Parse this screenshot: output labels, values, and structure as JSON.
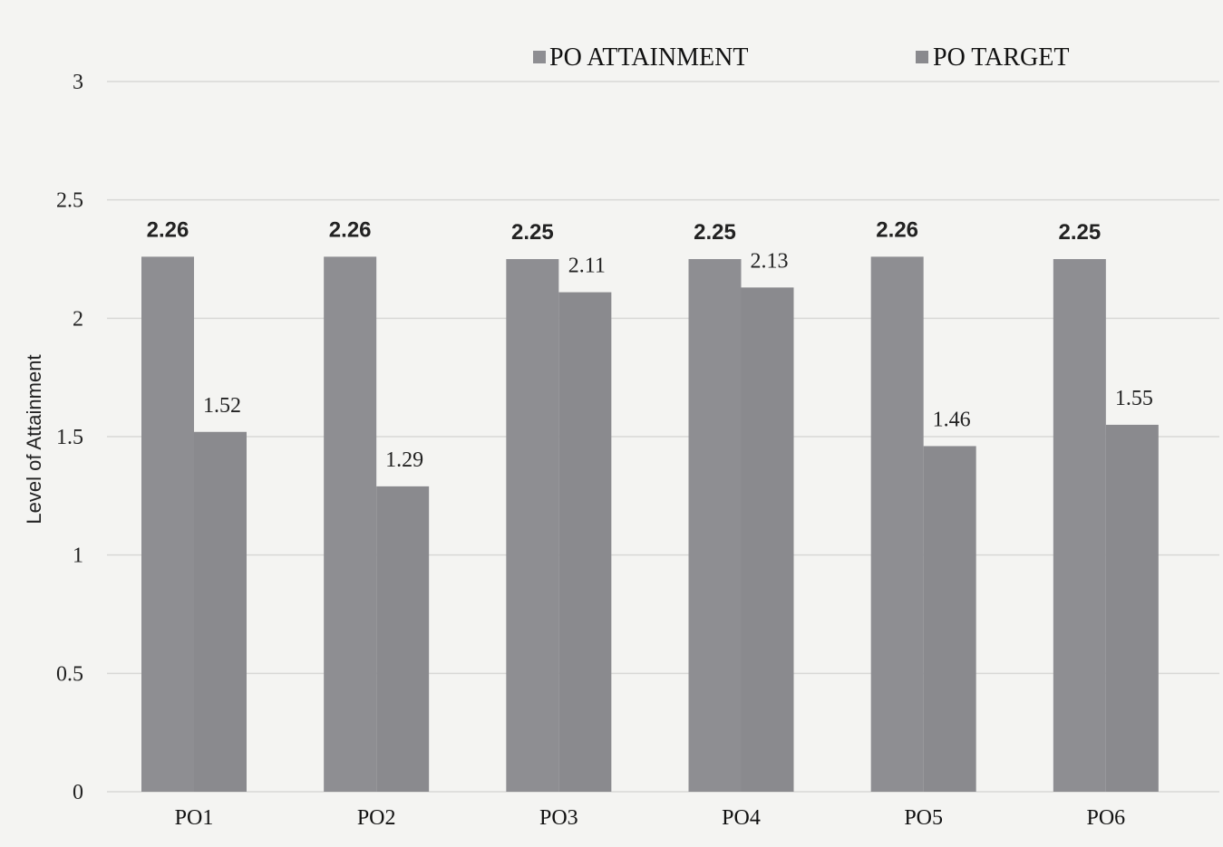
{
  "chart_data": {
    "type": "bar",
    "title": "",
    "xlabel": "",
    "ylabel": "Level of Attainment",
    "ylim": [
      0,
      3
    ],
    "yticks": [
      "0",
      "0.5",
      "1",
      "1.5",
      "2",
      "2.5",
      "3"
    ],
    "grid": true,
    "legend_position": "top",
    "categories": [
      "PO1",
      "PO2",
      "PO3",
      "PO4",
      "PO5",
      "PO6"
    ],
    "series": [
      {
        "name": "PO ATTAINMENT",
        "values": [
          2.26,
          2.26,
          2.25,
          2.25,
          2.26,
          2.25
        ],
        "labels": [
          "2.26",
          "2.26",
          "2.25",
          "2.25",
          "2.26",
          "2.25"
        ],
        "color": "#8e8e92"
      },
      {
        "name": "PO TARGET",
        "values": [
          1.52,
          1.29,
          2.11,
          2.13,
          1.46,
          1.55
        ],
        "labels": [
          "1.52",
          "1.29",
          "2.11",
          "2.13",
          "1.46",
          "1.55"
        ],
        "color": "#8a8a8e"
      }
    ]
  }
}
